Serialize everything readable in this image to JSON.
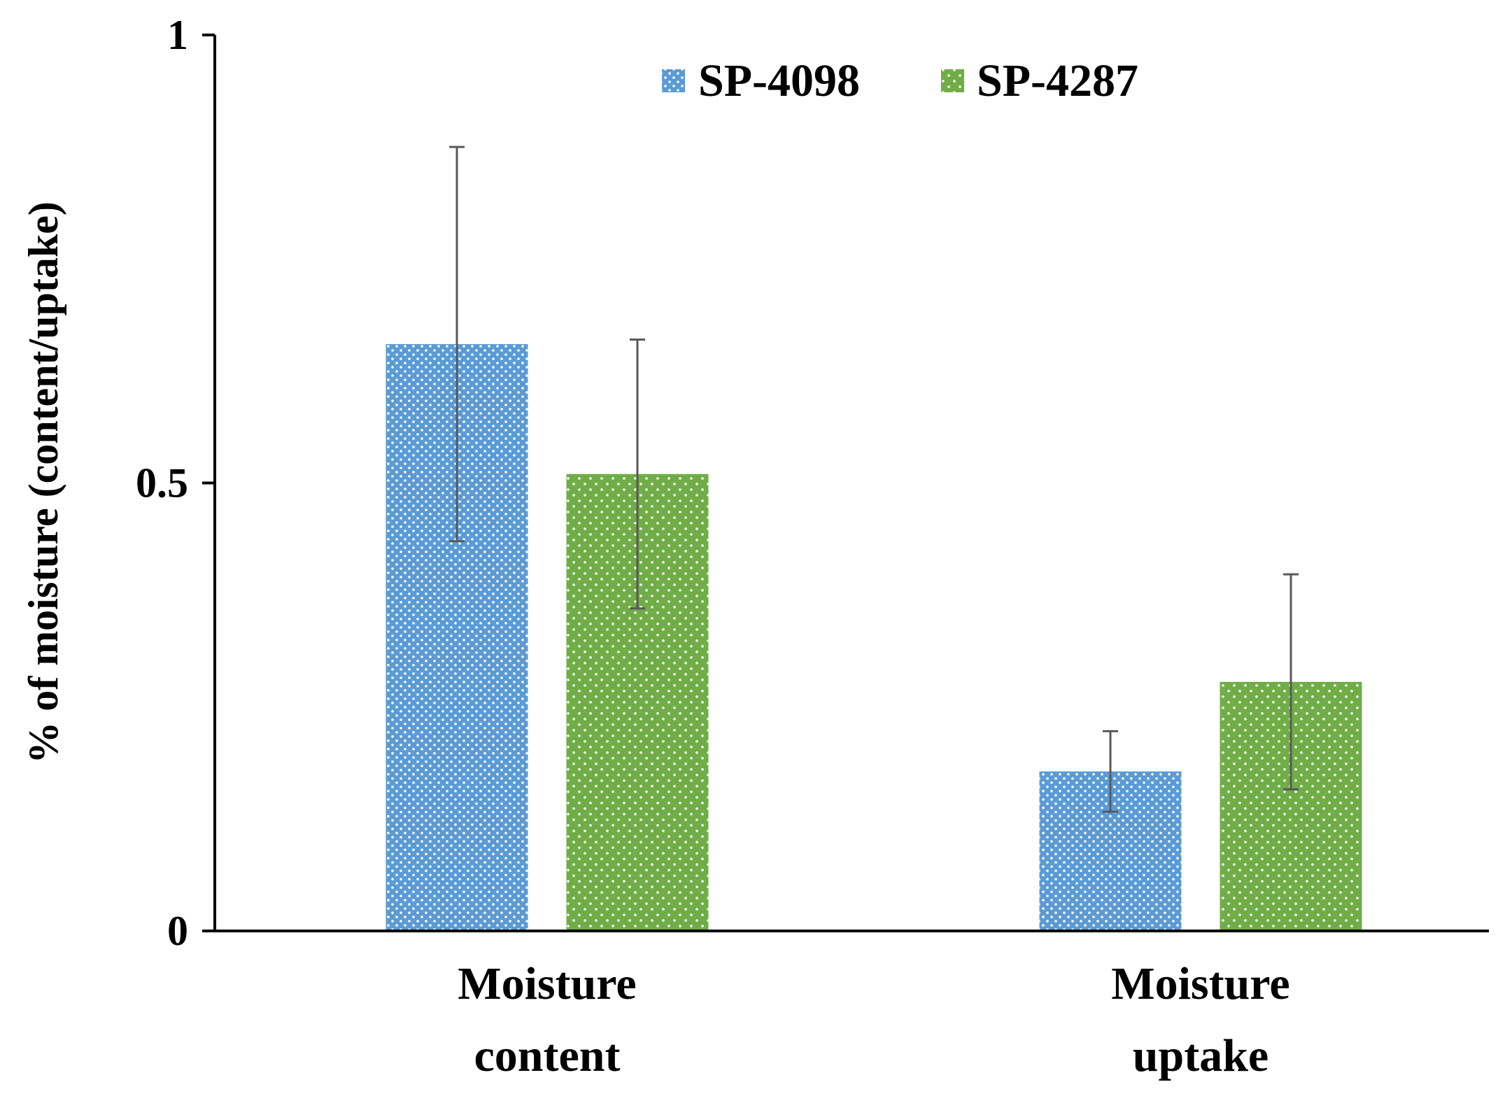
{
  "chart_data": {
    "type": "bar",
    "title": "",
    "xlabel": "",
    "ylabel": "% of moisture (content/uptake)",
    "ylim": [
      0,
      1
    ],
    "yticks": [
      0,
      0.5,
      1
    ],
    "ytick_labels": [
      "0",
      "0.5",
      "1"
    ],
    "categories": [
      [
        "Moisture",
        "content"
      ],
      [
        "Moisture",
        "uptake"
      ]
    ],
    "series": [
      {
        "name": "SP-4098",
        "color": "#5b9bd5",
        "values": [
          0.655,
          0.178
        ],
        "errors": [
          0.22,
          0.045
        ]
      },
      {
        "name": "SP-4287",
        "color": "#70ad47",
        "values": [
          0.51,
          0.278
        ],
        "errors": [
          0.15,
          0.12
        ]
      }
    ],
    "legend_position": "top-center",
    "grid": false
  }
}
